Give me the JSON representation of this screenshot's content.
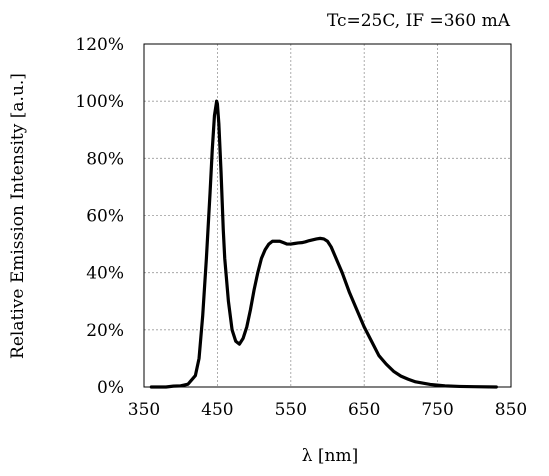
{
  "chart_data": {
    "type": "line",
    "title": "Tc=25C, IF =360 mA",
    "xlabel": "λ [nm]",
    "ylabel": "Relative Emission Intensity [a.u.]",
    "xlim": [
      350,
      850
    ],
    "ylim": [
      0,
      1.2
    ],
    "xticks": [
      350,
      450,
      550,
      650,
      750,
      850
    ],
    "xtick_labels": [
      "350",
      "450",
      "550",
      "650",
      "750",
      "850"
    ],
    "yticks": [
      0,
      0.2,
      0.4,
      0.6,
      0.8,
      1.0,
      1.2
    ],
    "ytick_labels": [
      "0%",
      "20%",
      "40%",
      "60%",
      "80%",
      "100%",
      "120%"
    ],
    "grid": true,
    "series_color": "#000000",
    "series": [
      {
        "x": [
          360,
          380,
          390,
          400,
          410,
          420,
          425,
          430,
          435,
          440,
          443,
          446,
          449,
          450,
          452,
          455,
          458,
          460,
          465,
          470,
          475,
          480,
          485,
          490,
          495,
          500,
          505,
          510,
          515,
          520,
          525,
          530,
          535,
          540,
          545,
          550,
          555,
          560,
          565,
          570,
          575,
          580,
          585,
          590,
          595,
          600,
          605,
          610,
          615,
          620,
          630,
          640,
          650,
          660,
          670,
          680,
          690,
          700,
          710,
          720,
          740,
          760,
          780,
          800,
          830
        ],
        "y": [
          0.0,
          0.0,
          0.003,
          0.004,
          0.01,
          0.04,
          0.1,
          0.25,
          0.45,
          0.68,
          0.83,
          0.95,
          1.0,
          0.99,
          0.92,
          0.75,
          0.55,
          0.45,
          0.3,
          0.2,
          0.16,
          0.15,
          0.17,
          0.21,
          0.27,
          0.34,
          0.4,
          0.45,
          0.48,
          0.5,
          0.51,
          0.51,
          0.51,
          0.505,
          0.5,
          0.5,
          0.502,
          0.504,
          0.505,
          0.508,
          0.512,
          0.515,
          0.518,
          0.52,
          0.518,
          0.51,
          0.49,
          0.46,
          0.43,
          0.4,
          0.33,
          0.27,
          0.21,
          0.16,
          0.11,
          0.08,
          0.055,
          0.038,
          0.027,
          0.018,
          0.009,
          0.004,
          0.002,
          0.001,
          0.0
        ]
      }
    ]
  }
}
